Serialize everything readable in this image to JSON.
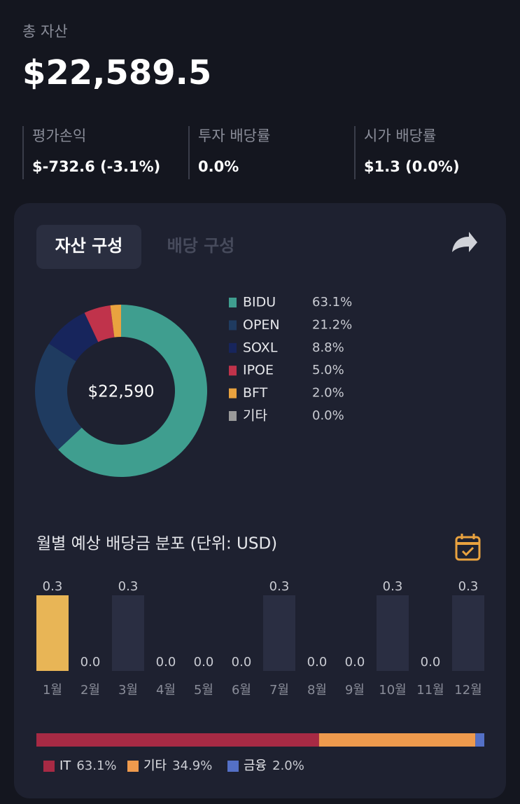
{
  "header": {
    "label": "총 자산",
    "value": "$22,589.5"
  },
  "stats": [
    {
      "label": "평가손익",
      "value": "$-732.6 (-3.1%)"
    },
    {
      "label": "투자 배당률",
      "value": "0.0%"
    },
    {
      "label": "시가 배당률",
      "value": "$1.3 (0.0%)"
    }
  ],
  "tabs": [
    "자산 구성",
    "배당 구성"
  ],
  "chart_data": [
    {
      "type": "pie",
      "center_label": "$22,590",
      "categories": [
        "BIDU",
        "OPEN",
        "SOXL",
        "IPOE",
        "BFT",
        "기타"
      ],
      "values": [
        63.1,
        21.2,
        8.8,
        5.0,
        2.0,
        0.0
      ],
      "value_labels": [
        "63.1%",
        "21.2%",
        "8.8%",
        "5.0%",
        "2.0%",
        "0.0%"
      ],
      "colors": [
        "#3f9e8f",
        "#1f3b60",
        "#17255c",
        "#c0334b",
        "#e9a23f",
        "#9a9a9a"
      ]
    },
    {
      "type": "bar",
      "title": "월별 예상 배당금 분포 (단위: USD)",
      "categories": [
        "1월",
        "2월",
        "3월",
        "4월",
        "5월",
        "6월",
        "7월",
        "8월",
        "9월",
        "10월",
        "11월",
        "12월"
      ],
      "values": [
        0.3,
        0.0,
        0.3,
        0.0,
        0.0,
        0.0,
        0.3,
        0.0,
        0.0,
        0.3,
        0.0,
        0.3
      ],
      "value_labels": [
        "0.3",
        "0.0",
        "0.3",
        "0.0",
        "0.0",
        "0.0",
        "0.3",
        "0.0",
        "0.0",
        "0.3",
        "0.0",
        "0.3"
      ],
      "colors": [
        "#e8b556",
        "#2a2e42",
        "#2a2e42",
        "#2a2e42",
        "#2a2e42",
        "#2a2e42",
        "#2a2e42",
        "#2a2e42",
        "#2a2e42",
        "#2a2e42",
        "#2a2e42",
        "#2a2e42"
      ],
      "ylim": [
        0,
        0.3
      ]
    },
    {
      "type": "stacked-bar",
      "categories": [
        "IT",
        "기타",
        "금융"
      ],
      "values": [
        63.1,
        34.9,
        2.0
      ],
      "value_labels": [
        "63.1%",
        "34.9%",
        "2.0%"
      ],
      "colors": [
        "#a72a44",
        "#ee9a4d",
        "#5470c6"
      ]
    }
  ]
}
